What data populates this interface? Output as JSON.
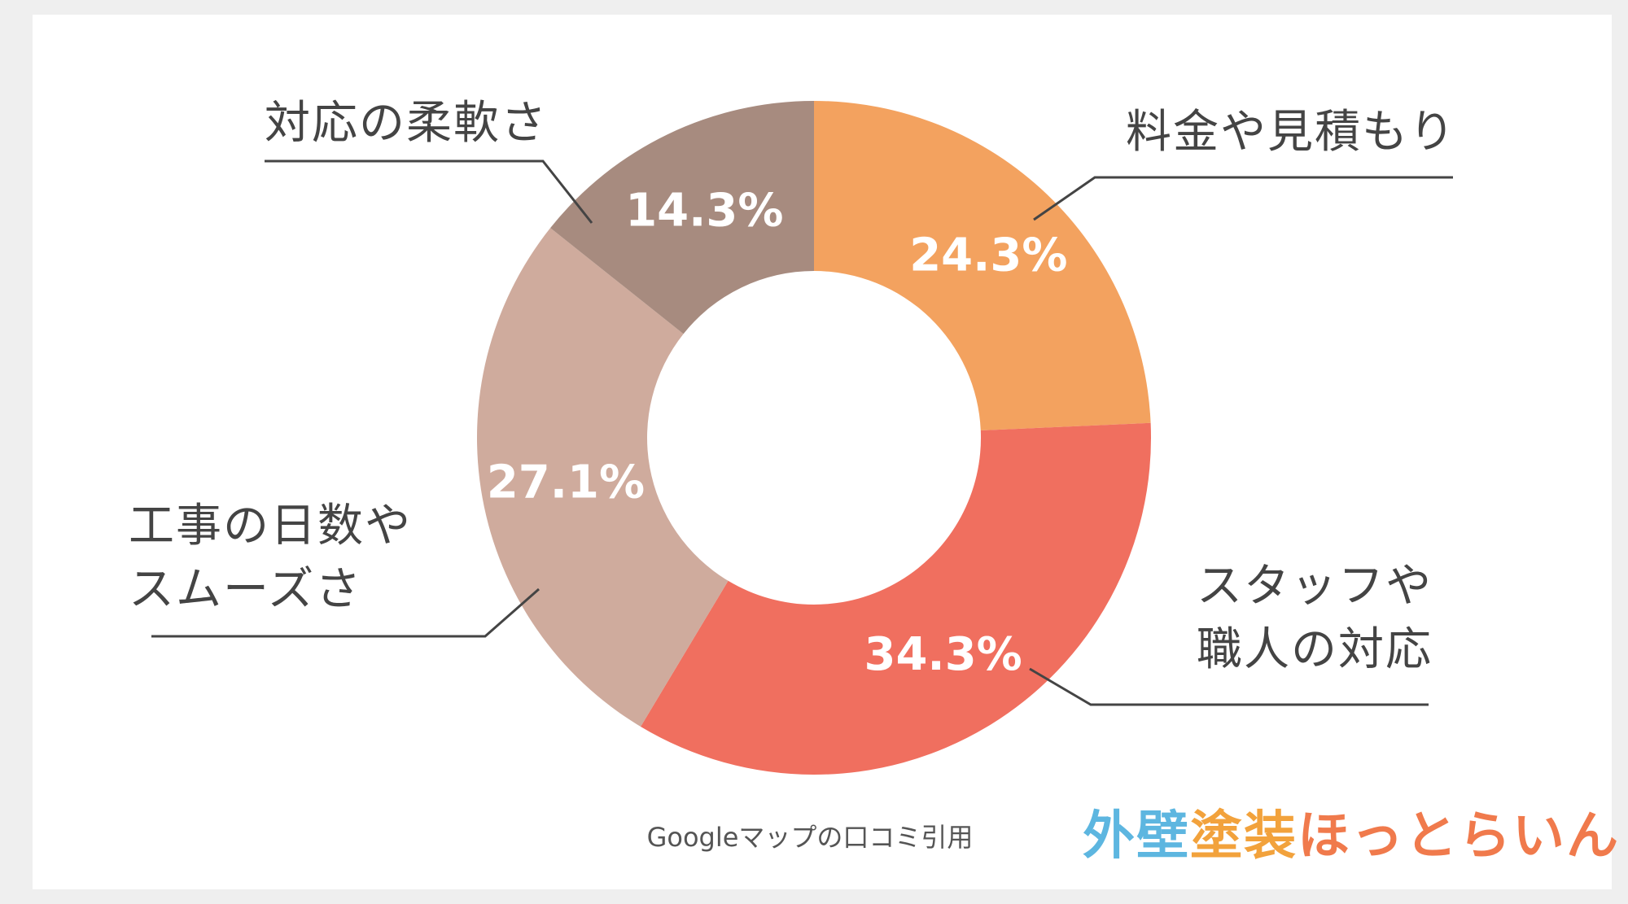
{
  "chart_data": {
    "type": "pie",
    "variant": "donut",
    "start_angle_deg": 0,
    "direction": "clockwise",
    "slices": [
      {
        "label": "料金や見積もり",
        "value": 24.3,
        "display": "24.3%",
        "color": "#f3a25f"
      },
      {
        "label": "スタッフや\n職人の対応",
        "value": 34.3,
        "display": "34.3%",
        "color": "#f06f5f"
      },
      {
        "label": "工事の日数や\nスムーズさ",
        "value": 27.1,
        "display": "27.1%",
        "color": "#cfab9d"
      },
      {
        "label": "対応の柔軟さ",
        "value": 14.3,
        "display": "14.3%",
        "color": "#a78b7f"
      }
    ]
  },
  "labels": {
    "fee": "料金や見積もり",
    "staff": "スタッフや\n職人の対応",
    "duration": "工事の日数や\nスムーズさ",
    "flexibility": "対応の柔軟さ"
  },
  "caption": "Googleマップの口コミ引用",
  "brand": {
    "part1": "外壁",
    "part2": "塗装",
    "part3": "ほっとらいん"
  }
}
